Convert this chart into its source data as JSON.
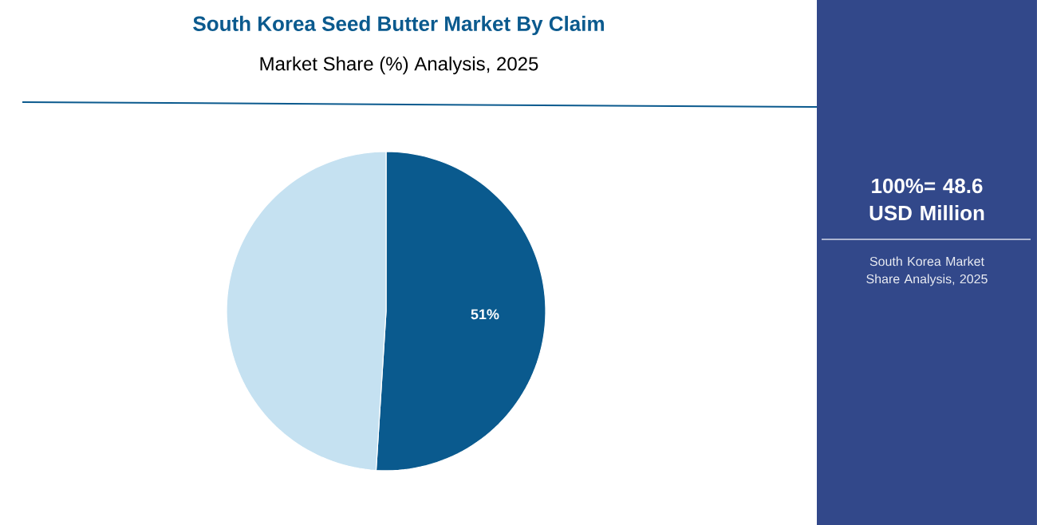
{
  "chart_data": {
    "type": "pie",
    "title": "South Korea Seed Butter Market By Claim",
    "subtitle": "Market Share (%) Analysis, 2025",
    "categories": [
      null,
      null
    ],
    "values": [
      51,
      49
    ],
    "colors": [
      "#0a5a8e",
      "#c5e1f1"
    ],
    "value_labels": [
      "51%",
      null
    ],
    "annotations": [
      "100%= 48.6 USD Million",
      "South Korea Market Share Analysis, 2025"
    ]
  }
}
